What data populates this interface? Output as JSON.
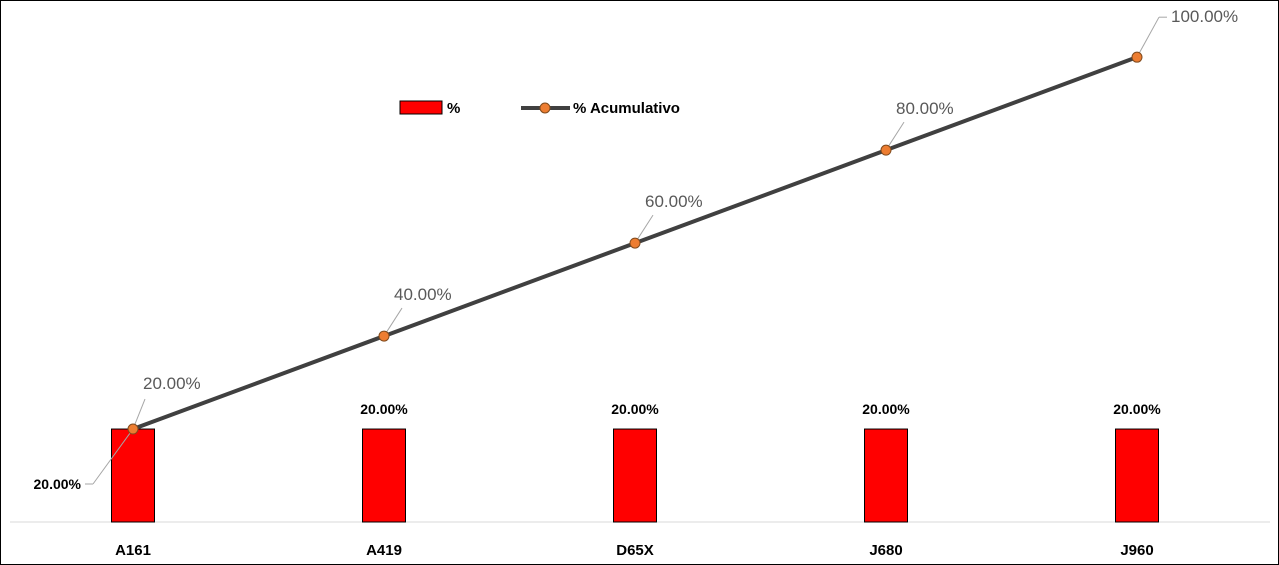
{
  "chart_data": {
    "type": "bar",
    "title": "",
    "xlabel": "",
    "ylabel": "",
    "ylim": [
      0,
      1.08
    ],
    "grid": false,
    "legend_position": "top-left",
    "categories": [
      "A161",
      "A419",
      "D65X",
      "J680",
      "J960"
    ],
    "series": [
      {
        "name": "%",
        "type": "bar",
        "color": "#ff0000",
        "values": [
          0.2,
          0.2,
          0.2,
          0.2,
          0.2
        ],
        "labels": [
          "20.00%",
          "20.00%",
          "20.00%",
          "20.00%",
          "20.00%"
        ]
      },
      {
        "name": "% Acumulativo",
        "type": "line",
        "color": "#404040",
        "marker_color": "#ed7d31",
        "values": [
          0.2,
          0.4,
          0.6,
          0.8,
          1.0
        ],
        "labels": [
          "20.00%",
          "40.00%",
          "60.00%",
          "80.00%",
          "100.00%"
        ]
      }
    ]
  }
}
